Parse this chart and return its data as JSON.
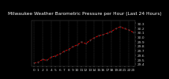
{
  "title": "Milwaukee Weather Barometric Pressure per Hour (Last 24 Hours)",
  "hours": [
    0,
    1,
    2,
    3,
    4,
    5,
    6,
    7,
    8,
    9,
    10,
    11,
    12,
    13,
    14,
    15,
    16,
    17,
    18,
    19,
    20,
    21,
    22,
    23
  ],
  "pressure": [
    29.42,
    29.44,
    29.5,
    29.48,
    29.55,
    29.58,
    29.62,
    29.68,
    29.72,
    29.78,
    29.82,
    29.88,
    29.85,
    29.92,
    29.98,
    30.02,
    30.05,
    30.08,
    30.12,
    30.18,
    30.22,
    30.18,
    30.15,
    30.1
  ],
  "ylim": [
    29.35,
    30.35
  ],
  "xlim": [
    -0.5,
    23.5
  ],
  "yticks": [
    29.4,
    29.5,
    29.6,
    29.7,
    29.8,
    29.9,
    30.0,
    30.1,
    30.2,
    30.3
  ],
  "line_color": "#ff0000",
  "marker_color": "#404040",
  "bg_color": "#000000",
  "plot_bg_color": "#000000",
  "title_bg_color": "#303030",
  "title_text_color": "#ffffff",
  "grid_color": "#555555",
  "tick_color": "#cccccc",
  "title_fontsize": 4.2,
  "tick_fontsize": 3.2,
  "marker_size": 1.5,
  "line_width": 0.6
}
